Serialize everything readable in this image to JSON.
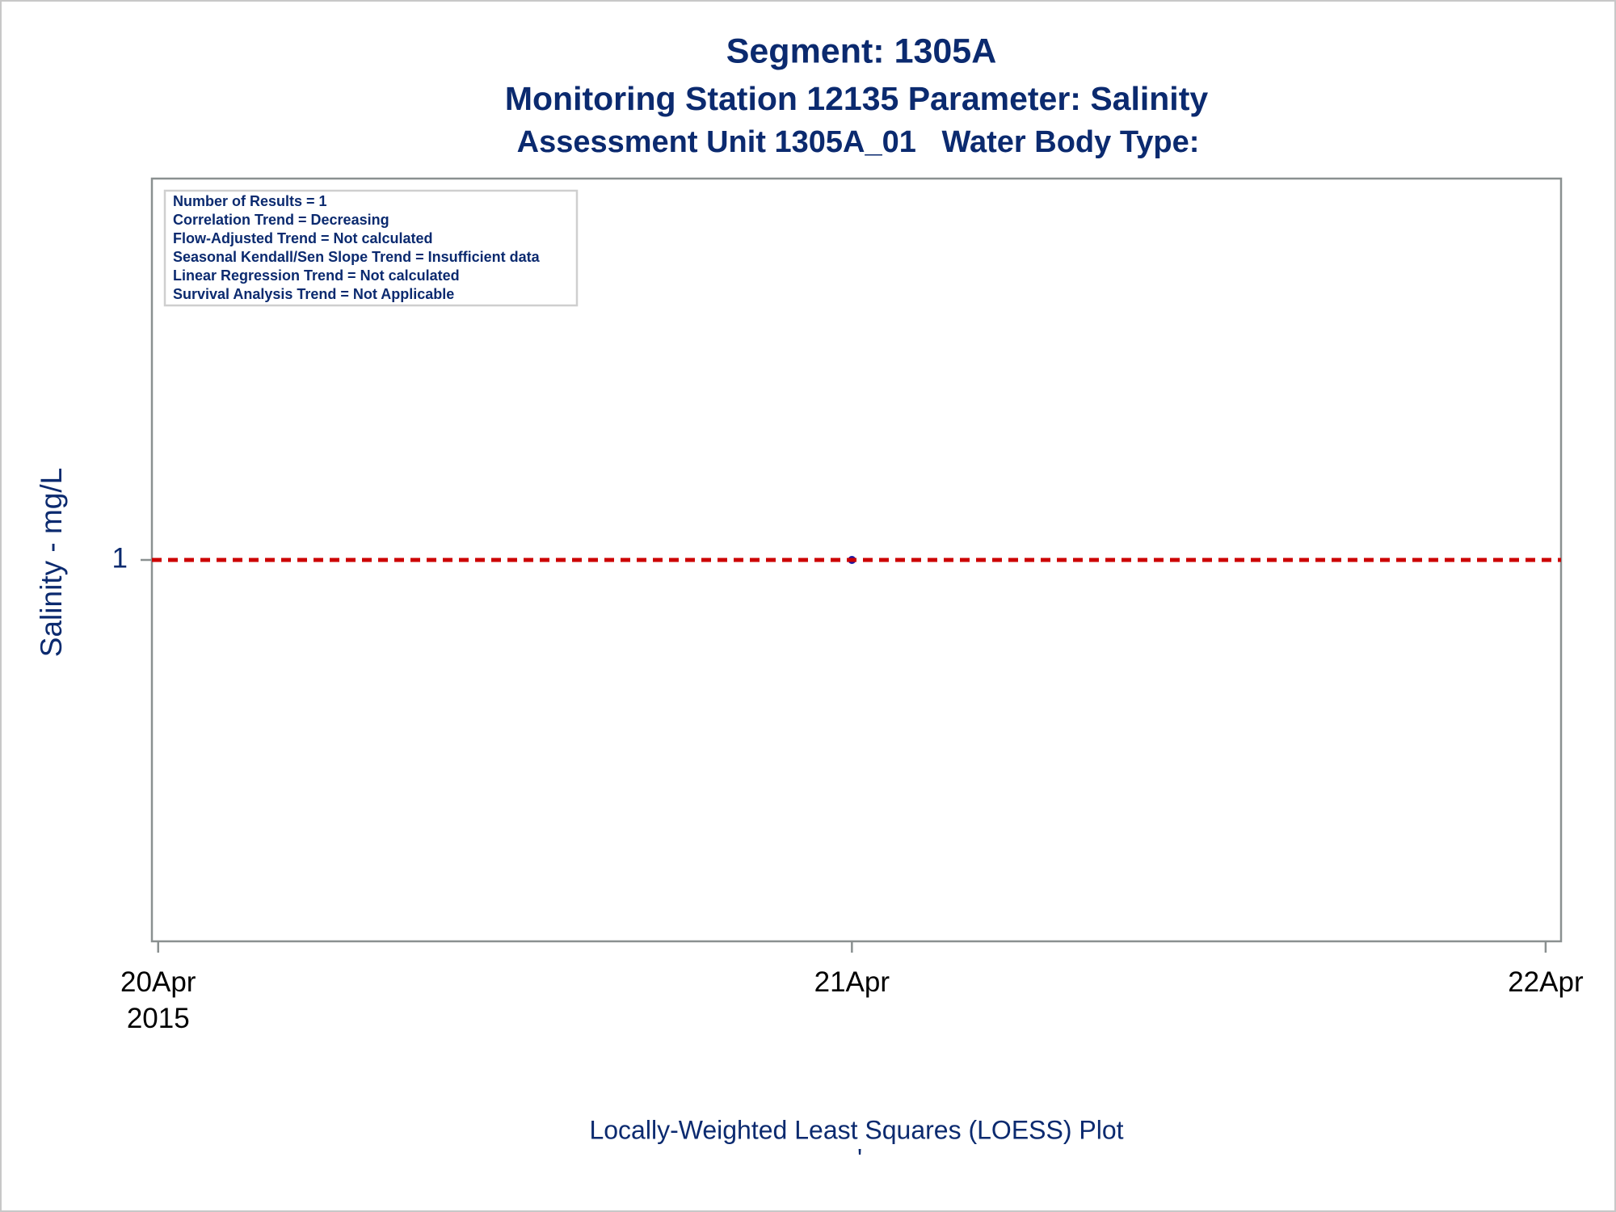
{
  "chart_data": {
    "type": "scatter",
    "title": "Segment: 1305A",
    "subtitle": "Monitoring Station 12135 Parameter: Salinity",
    "subtitle2": "Assessment Unit 1305A_01   Water Body Type:",
    "y_label": "Salinity - mg/L",
    "footnote": "Locally-Weighted Least Squares (LOESS) Plot",
    "footnote2": "'",
    "annotations": [
      "Number of Results = 1",
      "Correlation Trend = Decreasing",
      "Flow-Adjusted Trend = Not calculated",
      "Seasonal Kendall/Sen Slope Trend = Insufficient data",
      "Linear Regression Trend = Not calculated",
      "Survival Analysis Trend = Not Applicable"
    ],
    "x": [
      "2015-04-21"
    ],
    "series": [
      {
        "color": "#1a1aa6",
        "values": [
          1
        ]
      }
    ],
    "reference_line": {
      "value": 1,
      "color": "#cc0000",
      "dashed": true
    },
    "xlim": [
      "2015-04-19T23:47",
      "2015-04-22T00:32"
    ],
    "xticks": [
      {
        "value": "2015-04-20",
        "label": "20Apr 2015"
      },
      {
        "value": "2015-04-21",
        "label": "21Apr"
      },
      {
        "value": "2015-04-22",
        "label": "22Apr"
      }
    ],
    "ylim": [
      0,
      2
    ],
    "yticks": [
      1
    ],
    "grid": false
  }
}
